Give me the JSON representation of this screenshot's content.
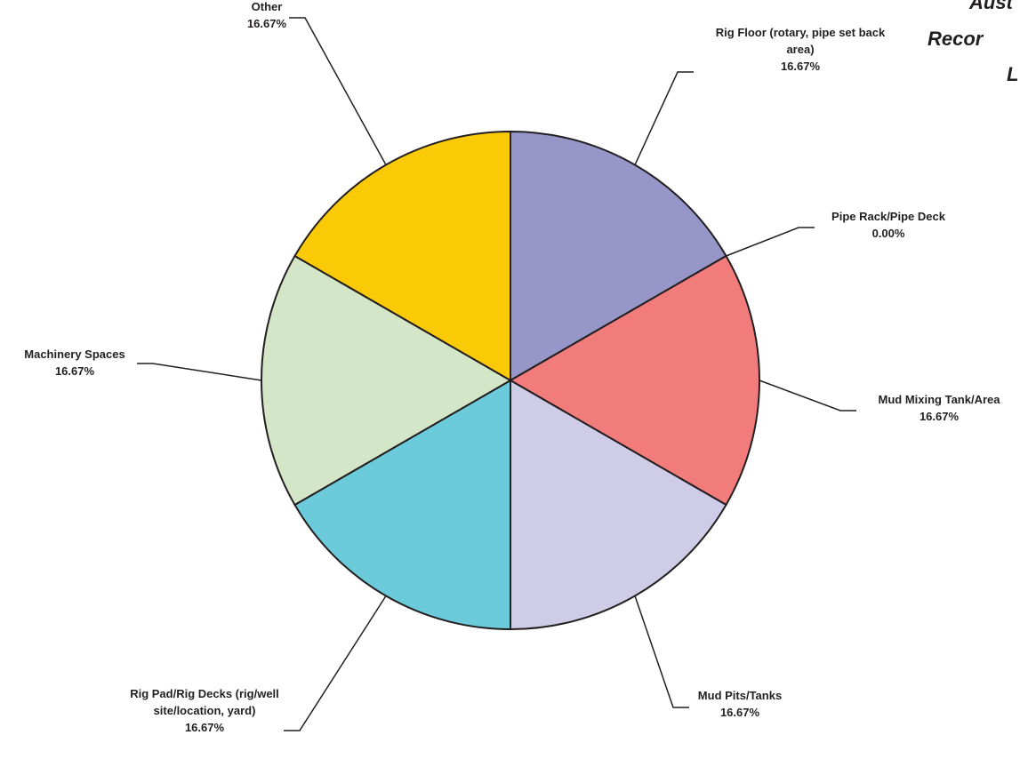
{
  "chart_data": {
    "type": "pie",
    "title_fragments": [
      "Aust",
      "Recor",
      "L"
    ],
    "slices": [
      {
        "label": [
          "Rig Floor (rotary, pipe set back",
          "area)"
        ],
        "value": 16.67,
        "pct_label": "16.67%",
        "color": "#9696c8"
      },
      {
        "label": [
          "Pipe Rack/Pipe Deck"
        ],
        "value": 0.0,
        "pct_label": "0.00%",
        "color": "#ffffff"
      },
      {
        "label": [
          "Mud Mixing Tank/Area"
        ],
        "value": 16.67,
        "pct_label": "16.67%",
        "color": "#f27c7c"
      },
      {
        "label": [
          "Mud Pits/Tanks"
        ],
        "value": 16.67,
        "pct_label": "16.67%",
        "color": "#cfcce8"
      },
      {
        "label": [
          "Rig Pad/Rig Decks (rig/well",
          "site/location, yard)"
        ],
        "value": 16.67,
        "pct_label": "16.67%",
        "color": "#6ccbdb"
      },
      {
        "label": [
          "Machinery Spaces"
        ],
        "value": 16.67,
        "pct_label": "16.67%",
        "color": "#d4e6c8"
      },
      {
        "label": [
          "Other"
        ],
        "value": 16.67,
        "pct_label": "16.67%",
        "color": "#fbca07"
      }
    ]
  }
}
